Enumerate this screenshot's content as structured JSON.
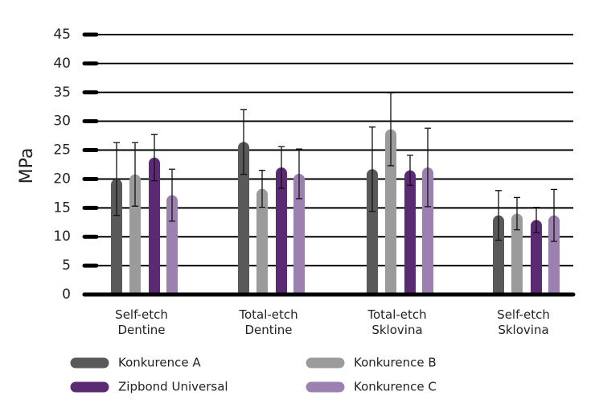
{
  "chart_data": {
    "type": "bar",
    "y_label": "MPa",
    "categories": [
      "Self-etch\nDentine",
      "Total-etch\nDentine",
      "Total-etch\nSklovina",
      "Self-etch\nSklovina"
    ],
    "series": [
      {
        "name": "Konkurence A",
        "color": "#595959",
        "values": [
          20,
          26.4,
          21.7,
          13.7
        ],
        "errors": [
          6.3,
          5.6,
          7.3,
          4.3
        ]
      },
      {
        "name": "Konkurence B",
        "color": "#9b9b9b",
        "values": [
          20.8,
          18.3,
          28.6,
          14
        ],
        "errors": [
          5.5,
          3.2,
          6.3,
          2.8
        ]
      },
      {
        "name": "Zipbond Universal",
        "color": "#5a2a72",
        "values": [
          23.7,
          22,
          21.5,
          12.9
        ],
        "errors": [
          4,
          3.6,
          2.6,
          2.2
        ]
      },
      {
        "name": "Konkurence C",
        "color": "#9b80b0",
        "values": [
          17.2,
          20.9,
          22,
          13.7
        ],
        "errors": [
          4.5,
          4.3,
          6.8,
          4.5
        ]
      }
    ],
    "ylim": [
      0,
      45
    ],
    "yticks": [
      0,
      5,
      10,
      15,
      20,
      25,
      30,
      35,
      40,
      45
    ],
    "grid": true
  }
}
